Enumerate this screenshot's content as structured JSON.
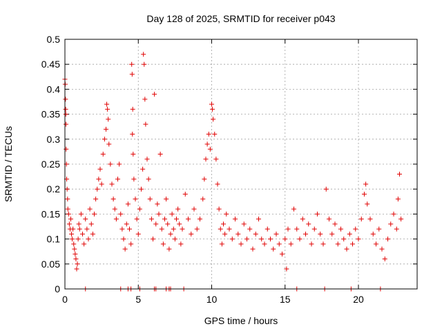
{
  "chart_data": {
    "type": "scatter",
    "title": "Day 128 of 2025, SRMTID for receiver p043",
    "xlabel": "GPS time / hours",
    "ylabel": "SRMTID / TECUs",
    "xlim": [
      0,
      24
    ],
    "ylim": [
      0,
      0.5
    ],
    "grid": true,
    "marker": "+",
    "color": "#e00000",
    "x_ticks": [
      {
        "v": 0,
        "label": "0"
      },
      {
        "v": 5,
        "label": "5"
      },
      {
        "v": 10,
        "label": "10"
      },
      {
        "v": 15,
        "label": "15"
      },
      {
        "v": 20,
        "label": "20"
      }
    ],
    "y_ticks": [
      {
        "v": 0,
        "label": "0"
      },
      {
        "v": 0.05,
        "label": "0.05"
      },
      {
        "v": 0.1,
        "label": "0.1"
      },
      {
        "v": 0.15,
        "label": "0.15"
      },
      {
        "v": 0.2,
        "label": "0.2"
      },
      {
        "v": 0.25,
        "label": "0.25"
      },
      {
        "v": 0.3,
        "label": "0.3"
      },
      {
        "v": 0.35,
        "label": "0.35"
      },
      {
        "v": 0.4,
        "label": "0.4"
      },
      {
        "v": 0.45,
        "label": "0.45"
      },
      {
        "v": 0.5,
        "label": "0.5"
      }
    ],
    "points": [
      [
        0.0,
        0.42
      ],
      [
        0.02,
        0.41
      ],
      [
        0.04,
        0.38
      ],
      [
        0.05,
        0.36
      ],
      [
        0.06,
        0.35
      ],
      [
        0.07,
        0.33
      ],
      [
        0.08,
        0.28
      ],
      [
        0.1,
        0.25
      ],
      [
        0.12,
        0.22
      ],
      [
        0.15,
        0.2
      ],
      [
        0.18,
        0.18
      ],
      [
        0.2,
        0.16
      ],
      [
        0.25,
        0.15
      ],
      [
        0.3,
        0.13
      ],
      [
        0.35,
        0.12
      ],
      [
        0.4,
        0.14
      ],
      [
        0.45,
        0.11
      ],
      [
        0.5,
        0.1
      ],
      [
        0.55,
        0.12
      ],
      [
        0.6,
        0.09
      ],
      [
        0.65,
        0.08
      ],
      [
        0.7,
        0.07
      ],
      [
        0.75,
        0.06
      ],
      [
        0.8,
        0.04
      ],
      [
        0.85,
        0.05
      ],
      [
        0.9,
        0.1
      ],
      [
        0.95,
        0.13
      ],
      [
        1.0,
        0.12
      ],
      [
        1.1,
        0.15
      ],
      [
        1.2,
        0.11
      ],
      [
        1.3,
        0.09
      ],
      [
        1.4,
        0.14
      ],
      [
        1.5,
        0.12
      ],
      [
        1.6,
        0.1
      ],
      [
        1.7,
        0.16
      ],
      [
        1.8,
        0.13
      ],
      [
        1.9,
        0.11
      ],
      [
        2.0,
        0.15
      ],
      [
        2.1,
        0.18
      ],
      [
        2.2,
        0.2
      ],
      [
        2.3,
        0.22
      ],
      [
        2.4,
        0.24
      ],
      [
        2.5,
        0.21
      ],
      [
        2.6,
        0.27
      ],
      [
        2.7,
        0.3
      ],
      [
        2.8,
        0.32
      ],
      [
        2.85,
        0.37
      ],
      [
        2.9,
        0.36
      ],
      [
        2.95,
        0.34
      ],
      [
        3.0,
        0.29
      ],
      [
        3.1,
        0.25
      ],
      [
        3.2,
        0.21
      ],
      [
        3.3,
        0.18
      ],
      [
        3.4,
        0.16
      ],
      [
        3.5,
        0.14
      ],
      [
        3.6,
        0.22
      ],
      [
        3.7,
        0.25
      ],
      [
        3.8,
        0.15
      ],
      [
        3.9,
        0.12
      ],
      [
        4.0,
        0.1
      ],
      [
        4.1,
        0.08
      ],
      [
        4.2,
        0.13
      ],
      [
        4.3,
        0.17
      ],
      [
        4.4,
        0.12
      ],
      [
        4.5,
        0.09
      ],
      [
        4.55,
        0.45
      ],
      [
        4.58,
        0.43
      ],
      [
        4.6,
        0.31
      ],
      [
        4.62,
        0.36
      ],
      [
        4.65,
        0.27
      ],
      [
        4.7,
        0.22
      ],
      [
        4.8,
        0.18
      ],
      [
        4.9,
        0.14
      ],
      [
        5.0,
        0.11
      ],
      [
        5.1,
        0.16
      ],
      [
        5.2,
        0.2
      ],
      [
        5.3,
        0.24
      ],
      [
        5.35,
        0.47
      ],
      [
        5.4,
        0.45
      ],
      [
        5.45,
        0.38
      ],
      [
        5.5,
        0.33
      ],
      [
        5.6,
        0.26
      ],
      [
        5.7,
        0.22
      ],
      [
        5.8,
        0.18
      ],
      [
        5.9,
        0.14
      ],
      [
        6.0,
        0.1
      ],
      [
        6.1,
        0.39
      ],
      [
        6.2,
        0.13
      ],
      [
        6.3,
        0.17
      ],
      [
        6.4,
        0.15
      ],
      [
        6.5,
        0.27
      ],
      [
        6.6,
        0.12
      ],
      [
        6.7,
        0.09
      ],
      [
        6.8,
        0.14
      ],
      [
        6.9,
        0.18
      ],
      [
        7.0,
        0.13
      ],
      [
        7.1,
        0.08
      ],
      [
        7.2,
        0.11
      ],
      [
        7.3,
        0.15
      ],
      [
        7.4,
        0.12
      ],
      [
        7.5,
        0.1
      ],
      [
        7.6,
        0.14
      ],
      [
        7.7,
        0.16
      ],
      [
        7.8,
        0.13
      ],
      [
        7.9,
        0.09
      ],
      [
        8.0,
        0.12
      ],
      [
        8.2,
        0.19
      ],
      [
        8.4,
        0.14
      ],
      [
        8.6,
        0.11
      ],
      [
        8.8,
        0.16
      ],
      [
        9.0,
        0.12
      ],
      [
        9.2,
        0.14
      ],
      [
        9.4,
        0.18
      ],
      [
        9.5,
        0.22
      ],
      [
        9.6,
        0.26
      ],
      [
        9.7,
        0.29
      ],
      [
        9.8,
        0.31
      ],
      [
        9.9,
        0.28
      ],
      [
        10.0,
        0.37
      ],
      [
        10.05,
        0.36
      ],
      [
        10.1,
        0.34
      ],
      [
        10.2,
        0.31
      ],
      [
        10.3,
        0.26
      ],
      [
        10.4,
        0.21
      ],
      [
        10.5,
        0.16
      ],
      [
        10.6,
        0.12
      ],
      [
        10.7,
        0.09
      ],
      [
        10.8,
        0.13
      ],
      [
        10.9,
        0.11
      ],
      [
        11.0,
        0.15
      ],
      [
        11.2,
        0.12
      ],
      [
        11.4,
        0.1
      ],
      [
        11.6,
        0.14
      ],
      [
        11.8,
        0.11
      ],
      [
        12.0,
        0.09
      ],
      [
        12.2,
        0.13
      ],
      [
        12.4,
        0.1
      ],
      [
        12.6,
        0.12
      ],
      [
        12.8,
        0.08
      ],
      [
        13.0,
        0.11
      ],
      [
        13.2,
        0.14
      ],
      [
        13.4,
        0.1
      ],
      [
        13.6,
        0.09
      ],
      [
        13.8,
        0.12
      ],
      [
        14.0,
        0.1
      ],
      [
        14.2,
        0.08
      ],
      [
        14.4,
        0.11
      ],
      [
        14.6,
        0.09
      ],
      [
        14.8,
        0.07
      ],
      [
        15.0,
        0.1
      ],
      [
        15.1,
        0.04
      ],
      [
        15.2,
        0.12
      ],
      [
        15.4,
        0.09
      ],
      [
        15.6,
        0.16
      ],
      [
        15.8,
        0.12
      ],
      [
        16.0,
        0.1
      ],
      [
        16.2,
        0.14
      ],
      [
        16.4,
        0.11
      ],
      [
        16.6,
        0.13
      ],
      [
        16.8,
        0.09
      ],
      [
        17.0,
        0.12
      ],
      [
        17.2,
        0.15
      ],
      [
        17.4,
        0.11
      ],
      [
        17.6,
        0.09
      ],
      [
        17.8,
        0.2
      ],
      [
        18.0,
        0.14
      ],
      [
        18.2,
        0.11
      ],
      [
        18.4,
        0.13
      ],
      [
        18.6,
        0.09
      ],
      [
        18.8,
        0.12
      ],
      [
        19.0,
        0.1
      ],
      [
        19.2,
        0.08
      ],
      [
        19.4,
        0.11
      ],
      [
        19.6,
        0.09
      ],
      [
        19.8,
        0.12
      ],
      [
        20.0,
        0.1
      ],
      [
        20.2,
        0.14
      ],
      [
        20.4,
        0.19
      ],
      [
        20.5,
        0.21
      ],
      [
        20.6,
        0.17
      ],
      [
        20.8,
        0.14
      ],
      [
        21.0,
        0.11
      ],
      [
        21.2,
        0.09
      ],
      [
        21.4,
        0.12
      ],
      [
        21.6,
        0.08
      ],
      [
        21.8,
        0.06
      ],
      [
        22.0,
        0.1
      ],
      [
        22.2,
        0.13
      ],
      [
        22.4,
        0.15
      ],
      [
        22.6,
        0.12
      ],
      [
        22.7,
        0.18
      ],
      [
        22.8,
        0.23
      ],
      [
        22.9,
        0.14
      ]
    ],
    "zero_markers": [
      1.4,
      3.8,
      4.3,
      4.5,
      5.1,
      6.1,
      6.2,
      6.9,
      7.1,
      7.2,
      8.1,
      15.8,
      17.7,
      19.5,
      21.5
    ]
  }
}
